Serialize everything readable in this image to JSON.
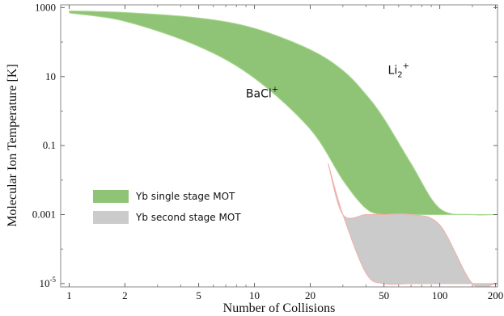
{
  "chart_data": {
    "type": "area",
    "xlabel": "Number of Collisions",
    "ylabel": "Molecular Ion Temperature [K]",
    "xscale": "log",
    "yscale": "log",
    "xlim": [
      0.9,
      205
    ],
    "ylim": [
      8e-06,
      1200
    ],
    "xticks": [
      {
        "value": 1,
        "label": "1"
      },
      {
        "value": 2,
        "label": "2"
      },
      {
        "value": 5,
        "label": "5"
      },
      {
        "value": 10,
        "label": "10"
      },
      {
        "value": 20,
        "label": "20"
      },
      {
        "value": 50,
        "label": "50"
      },
      {
        "value": 100,
        "label": "100"
      },
      {
        "value": 200,
        "label": "200"
      }
    ],
    "yticks": [
      {
        "value": 1000,
        "label": "1000"
      },
      {
        "value": 10,
        "label": "10"
      },
      {
        "value": 0.1,
        "label": "0.1"
      },
      {
        "value": 0.001,
        "label": "0.001"
      },
      {
        "value": 1e-05,
        "label": "10",
        "sup": "-5"
      }
    ],
    "grid": false,
    "legend_placement": "lower-left",
    "series": [
      {
        "name": "Yb single stage MOT",
        "color": "#8fc476",
        "x": [
          1,
          2,
          5,
          10,
          20,
          30,
          40,
          50,
          70,
          100,
          150,
          200
        ],
        "lower": [
          700,
          400,
          75,
          9,
          0.3,
          0.01,
          0.0015,
          0.001,
          0.001,
          0.001,
          0.001,
          0.001
        ],
        "upper": [
          800,
          720,
          500,
          250,
          60,
          15,
          3,
          0.6,
          0.03,
          0.0015,
          0.001,
          0.001
        ]
      },
      {
        "name": "Yb second stage MOT",
        "color": "#cbcbcb",
        "x": [
          25,
          30,
          40,
          50,
          70,
          100,
          150,
          200
        ],
        "lower": [
          0.03,
          0.001,
          2e-05,
          1e-05,
          1e-05,
          1e-05,
          1e-05,
          1e-05
        ],
        "upper": [
          0.03,
          0.001,
          0.001,
          0.001,
          0.001,
          0.0005,
          1e-05,
          1e-05
        ]
      }
    ],
    "annotations": [
      {
        "text": "BaCl",
        "sup": "+",
        "x": 11,
        "y": 2.5
      },
      {
        "text": "Li",
        "sub": "2",
        "sup": "+",
        "x": 60,
        "y": 12
      }
    ]
  }
}
